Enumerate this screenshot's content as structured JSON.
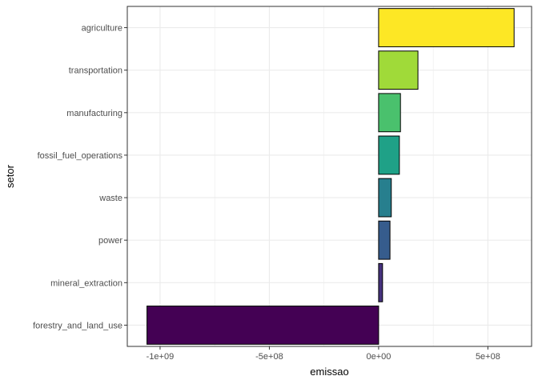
{
  "chart_data": {
    "type": "bar",
    "orientation": "horizontal",
    "xlabel": "emissao",
    "ylabel": "setor",
    "categories": [
      "agriculture",
      "transportation",
      "manufacturing",
      "fossil_fuel_operations",
      "waste",
      "power",
      "mineral_extraction",
      "forestry_and_land_use"
    ],
    "values": [
      620000000,
      180000000,
      100000000,
      95000000,
      58000000,
      52000000,
      18000000,
      -1060000000
    ],
    "colors": [
      "#FDE725",
      "#A0DA39",
      "#4AC16D",
      "#1FA187",
      "#277F8E",
      "#365C8D",
      "#46327E",
      "#440154"
    ],
    "xlim": [
      -1150000000,
      700000000
    ],
    "x_ticks": [
      -1000000000,
      -500000000,
      0,
      500000000
    ],
    "x_tick_labels": [
      "-1e+09",
      "-5e+08",
      "0e+00",
      "5e+08"
    ],
    "grid": true,
    "legend": "none"
  }
}
